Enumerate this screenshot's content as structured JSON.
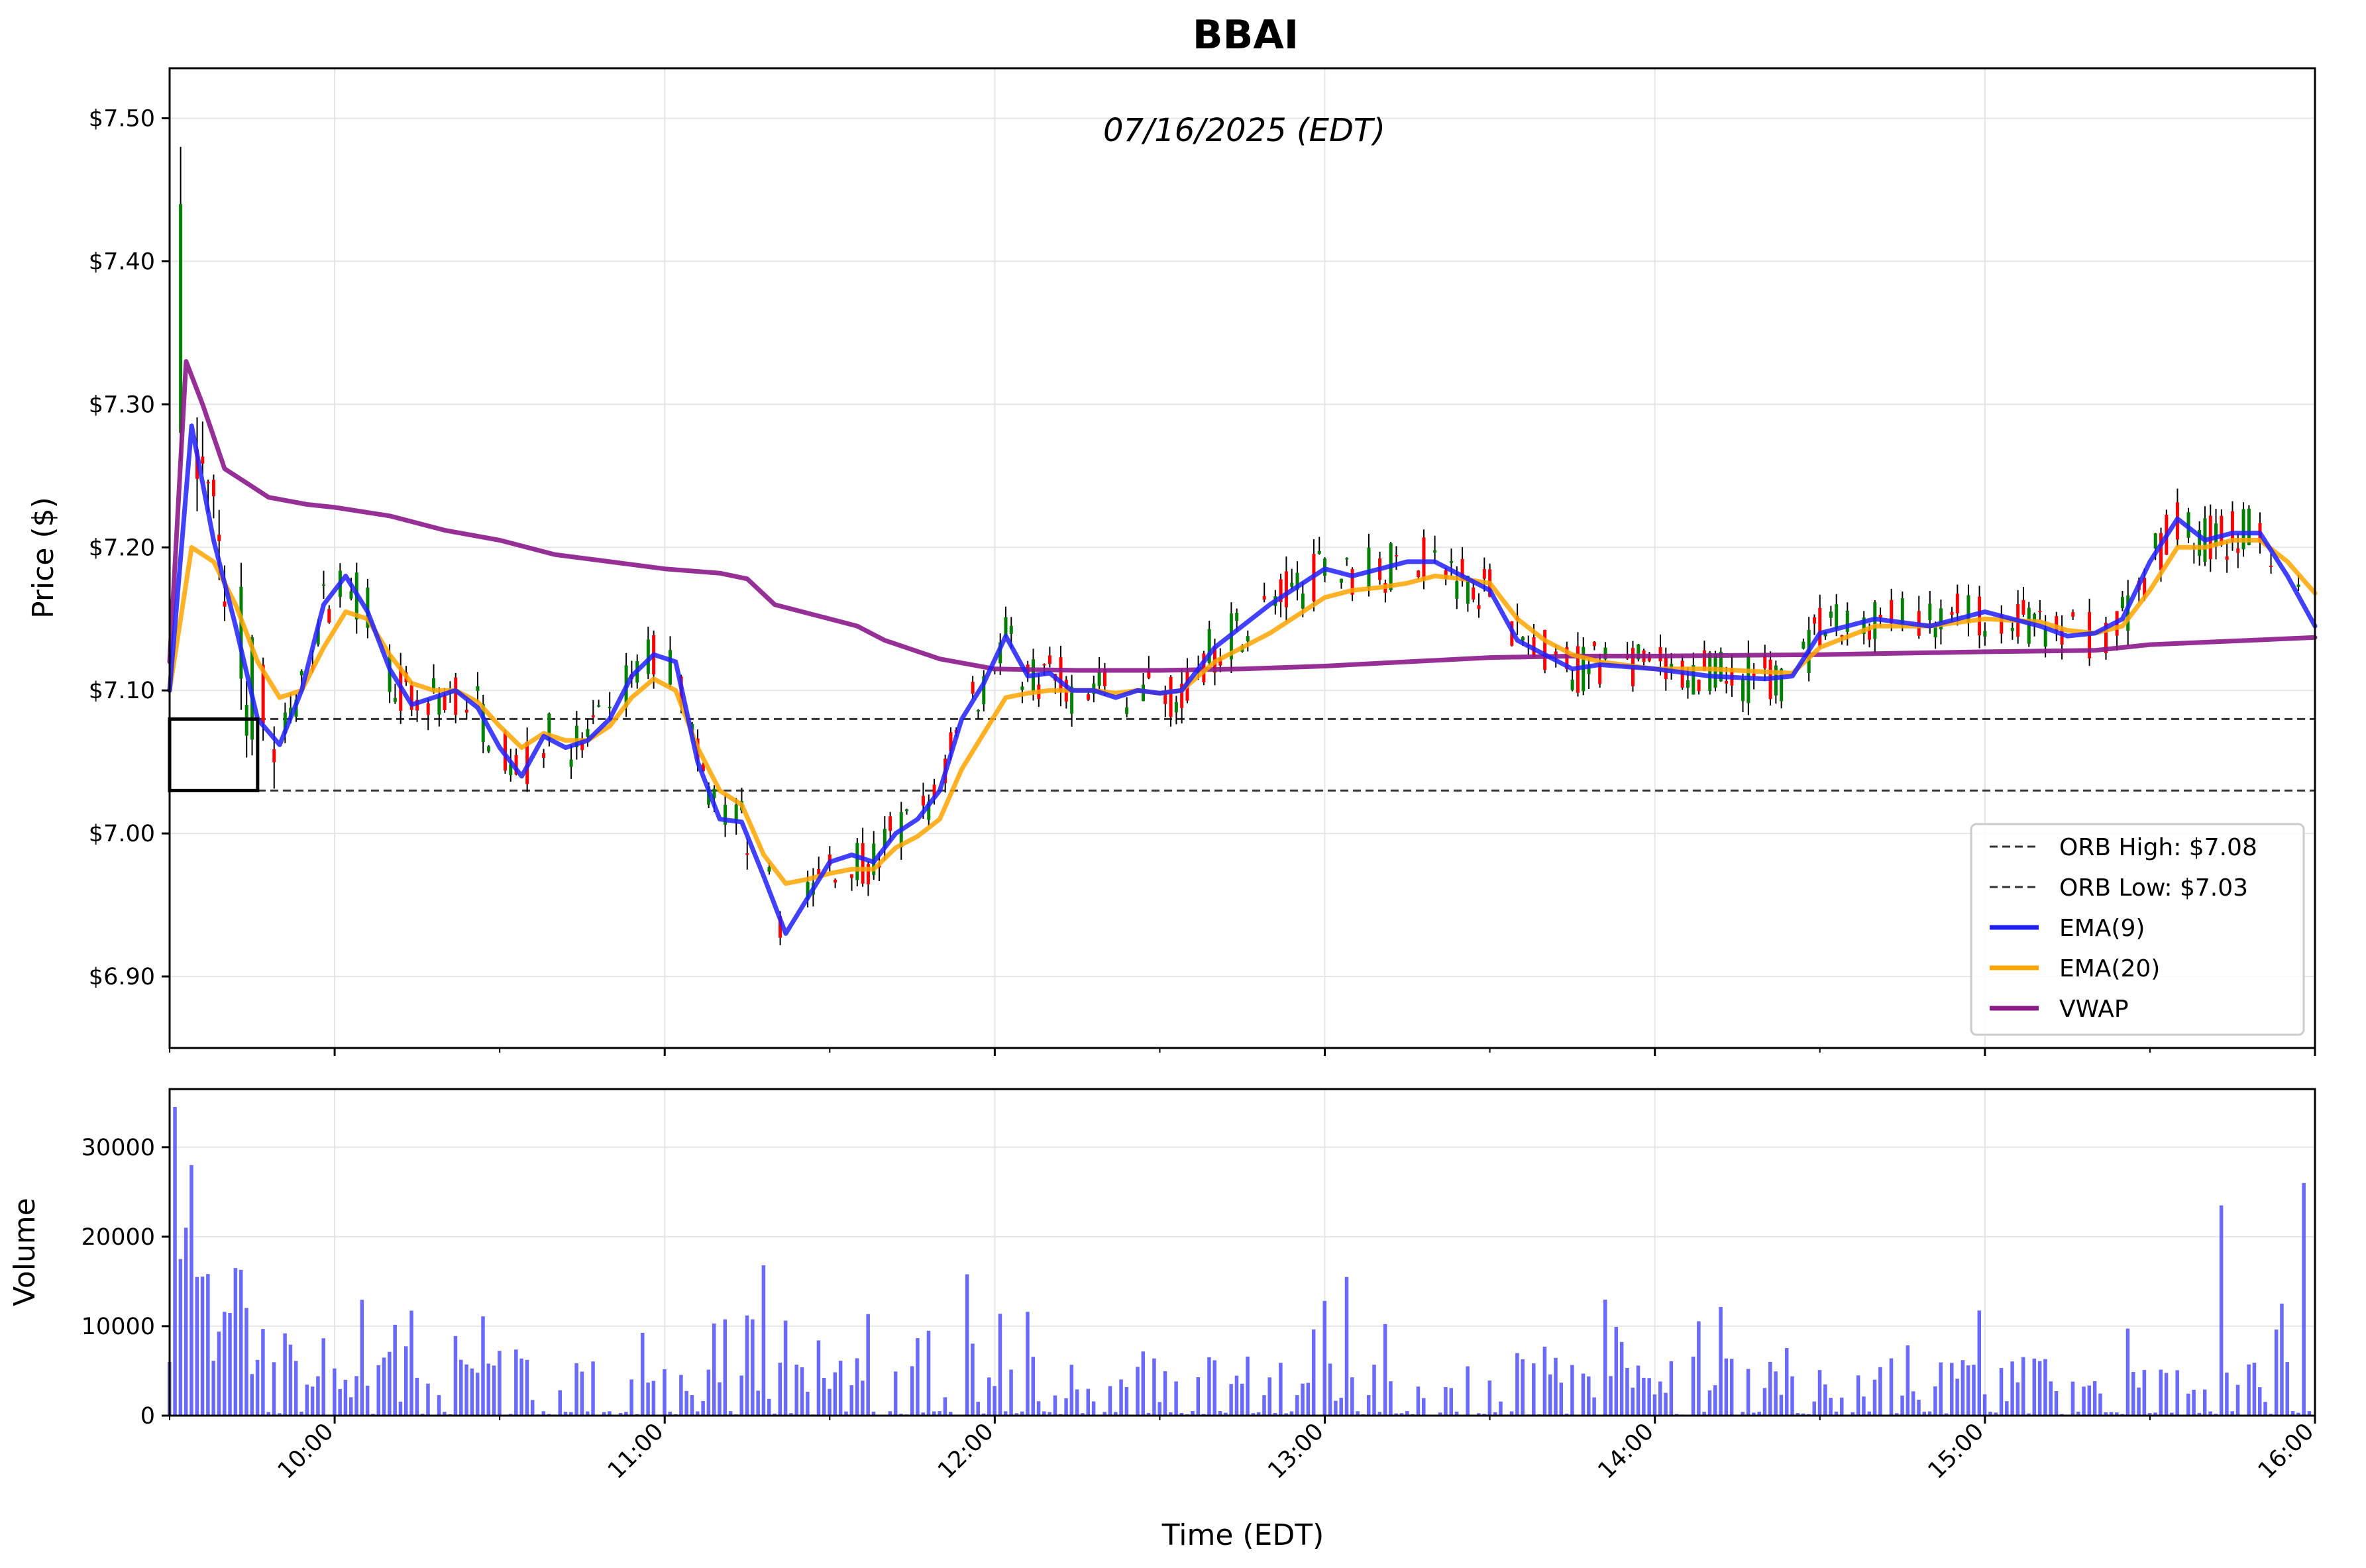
{
  "chart_data": [
    {
      "type": "candlestick",
      "title": "BBAI",
      "subtitle": "07/16/2025 (EDT)",
      "ylabel": "Price ($)",
      "xlabel": "",
      "x_range": [
        "09:30",
        "16:00"
      ],
      "ylim": [
        6.85,
        7.535
      ],
      "yticks": [
        6.9,
        7.0,
        7.1,
        7.2,
        7.3,
        7.4,
        7.5
      ],
      "ytick_labels": [
        "$6.90",
        "$7.00",
        "$7.10",
        "$7.20",
        "$7.30",
        "$7.40",
        "$7.50"
      ],
      "grid": true,
      "legend_position": "lower right",
      "candle_colors": {
        "up": "#008000",
        "down": "#ff0000"
      },
      "orb": {
        "high": 7.08,
        "low": 7.03,
        "start": "09:30",
        "end": "09:46"
      },
      "series": [
        {
          "name": "ORB High: $7.08",
          "style": "dashed",
          "color": "#333333",
          "x": [
            "09:30",
            "16:00"
          ],
          "values": [
            7.08,
            7.08
          ]
        },
        {
          "name": "ORB Low: $7.03",
          "style": "dashed",
          "color": "#333333",
          "x": [
            "09:30",
            "16:00"
          ],
          "values": [
            7.03,
            7.03
          ]
        },
        {
          "name": "EMA(9)",
          "color": "#2020ff",
          "x": [
            "09:30",
            "09:34",
            "09:38",
            "09:42",
            "09:46",
            "09:50",
            "09:54",
            "09:58",
            "10:02",
            "10:06",
            "10:10",
            "10:14",
            "10:18",
            "10:22",
            "10:26",
            "10:30",
            "10:34",
            "10:38",
            "10:42",
            "10:46",
            "10:50",
            "10:54",
            "10:58",
            "11:02",
            "11:06",
            "11:10",
            "11:14",
            "11:18",
            "11:22",
            "11:26",
            "11:30",
            "11:34",
            "11:38",
            "11:42",
            "11:46",
            "11:50",
            "11:54",
            "11:58",
            "12:02",
            "12:06",
            "12:10",
            "12:14",
            "12:18",
            "12:22",
            "12:26",
            "12:30",
            "12:34",
            "12:40",
            "12:50",
            "13:00",
            "13:05",
            "13:10",
            "13:15",
            "13:20",
            "13:25",
            "13:30",
            "13:35",
            "13:40",
            "13:45",
            "13:50",
            "14:00",
            "14:10",
            "14:20",
            "14:25",
            "14:30",
            "14:40",
            "14:50",
            "15:00",
            "15:10",
            "15:15",
            "15:20",
            "15:25",
            "15:30",
            "15:35",
            "15:40",
            "15:45",
            "15:50",
            "15:55",
            "16:00"
          ],
          "values": [
            7.1,
            7.285,
            7.205,
            7.145,
            7.08,
            7.062,
            7.1,
            7.16,
            7.18,
            7.155,
            7.115,
            7.09,
            7.095,
            7.1,
            7.088,
            7.06,
            7.04,
            7.068,
            7.06,
            7.065,
            7.08,
            7.11,
            7.125,
            7.12,
            7.05,
            7.01,
            7.008,
            6.97,
            6.93,
            6.955,
            6.98,
            6.985,
            6.98,
            7.0,
            7.01,
            7.03,
            7.08,
            7.105,
            7.138,
            7.11,
            7.112,
            7.1,
            7.1,
            7.095,
            7.1,
            7.098,
            7.1,
            7.13,
            7.16,
            7.185,
            7.18,
            7.185,
            7.19,
            7.19,
            7.18,
            7.17,
            7.135,
            7.125,
            7.115,
            7.118,
            7.115,
            7.11,
            7.108,
            7.11,
            7.14,
            7.15,
            7.145,
            7.155,
            7.145,
            7.138,
            7.14,
            7.15,
            7.19,
            7.22,
            7.205,
            7.21,
            7.21,
            7.18,
            7.145
          ]
        },
        {
          "name": "EMA(20)",
          "color": "#ffa500",
          "x": [
            "09:30",
            "09:34",
            "09:38",
            "09:42",
            "09:46",
            "09:50",
            "09:54",
            "09:58",
            "10:02",
            "10:06",
            "10:10",
            "10:14",
            "10:18",
            "10:22",
            "10:26",
            "10:30",
            "10:34",
            "10:38",
            "10:42",
            "10:46",
            "10:50",
            "10:54",
            "10:58",
            "11:02",
            "11:06",
            "11:10",
            "11:14",
            "11:18",
            "11:22",
            "11:26",
            "11:30",
            "11:34",
            "11:38",
            "11:42",
            "11:46",
            "11:50",
            "11:54",
            "11:58",
            "12:02",
            "12:06",
            "12:10",
            "12:14",
            "12:18",
            "12:22",
            "12:26",
            "12:30",
            "12:34",
            "12:40",
            "12:50",
            "13:00",
            "13:05",
            "13:10",
            "13:15",
            "13:20",
            "13:25",
            "13:30",
            "13:35",
            "13:40",
            "13:45",
            "13:50",
            "14:00",
            "14:10",
            "14:20",
            "14:25",
            "14:30",
            "14:40",
            "14:50",
            "15:00",
            "15:10",
            "15:15",
            "15:20",
            "15:25",
            "15:30",
            "15:35",
            "15:40",
            "15:45",
            "15:50",
            "15:55",
            "16:00"
          ],
          "values": [
            7.1,
            7.2,
            7.19,
            7.16,
            7.12,
            7.095,
            7.1,
            7.13,
            7.155,
            7.15,
            7.125,
            7.105,
            7.1,
            7.1,
            7.092,
            7.075,
            7.06,
            7.07,
            7.065,
            7.065,
            7.075,
            7.095,
            7.108,
            7.1,
            7.06,
            7.03,
            7.02,
            6.985,
            6.965,
            6.968,
            6.972,
            6.975,
            6.975,
            6.99,
            6.998,
            7.01,
            7.045,
            7.07,
            7.095,
            7.098,
            7.1,
            7.1,
            7.1,
            7.098,
            7.1,
            7.098,
            7.1,
            7.12,
            7.14,
            7.165,
            7.17,
            7.172,
            7.175,
            7.18,
            7.178,
            7.175,
            7.15,
            7.135,
            7.125,
            7.12,
            7.115,
            7.115,
            7.113,
            7.112,
            7.13,
            7.145,
            7.145,
            7.15,
            7.148,
            7.142,
            7.14,
            7.145,
            7.17,
            7.2,
            7.2,
            7.205,
            7.205,
            7.19,
            7.168
          ]
        },
        {
          "name": "VWAP",
          "color": "#8b1a8b",
          "x": [
            "09:30",
            "09:33",
            "09:36",
            "09:40",
            "09:44",
            "09:48",
            "09:55",
            "10:00",
            "10:10",
            "10:20",
            "10:30",
            "10:40",
            "10:50",
            "11:00",
            "11:10",
            "11:15",
            "11:20",
            "11:25",
            "11:35",
            "11:40",
            "11:50",
            "12:00",
            "12:15",
            "12:30",
            "12:45",
            "13:00",
            "13:15",
            "13:30",
            "13:45",
            "14:00",
            "14:30",
            "15:00",
            "15:20",
            "15:30",
            "16:00"
          ],
          "values": [
            7.12,
            7.33,
            7.3,
            7.255,
            7.245,
            7.235,
            7.23,
            7.228,
            7.222,
            7.212,
            7.205,
            7.195,
            7.19,
            7.185,
            7.182,
            7.178,
            7.16,
            7.155,
            7.145,
            7.135,
            7.122,
            7.115,
            7.114,
            7.114,
            7.115,
            7.117,
            7.12,
            7.123,
            7.124,
            7.124,
            7.125,
            7.127,
            7.128,
            7.132,
            7.137
          ]
        }
      ]
    },
    {
      "type": "bar",
      "ylabel": "Volume",
      "xlabel": "Time (EDT)",
      "x_range": [
        "09:30",
        "16:00"
      ],
      "ylim": [
        0,
        36500
      ],
      "yticks": [
        0,
        10000,
        20000,
        30000
      ],
      "xticks": [
        "10:00",
        "11:00",
        "12:00",
        "13:00",
        "14:00",
        "15:00",
        "16:00"
      ],
      "bar_color": "#5050ff",
      "grid": true
    }
  ],
  "legend_items": [
    {
      "label": "ORB High: $7.08",
      "color": "#333333",
      "style": "dashed"
    },
    {
      "label": "ORB Low: $7.03",
      "color": "#333333",
      "style": "dashed"
    },
    {
      "label": "EMA(9)",
      "color": "#2020ff",
      "style": "solid"
    },
    {
      "label": "EMA(20)",
      "color": "#ffa500",
      "style": "solid"
    },
    {
      "label": "VWAP",
      "color": "#8b1a8b",
      "style": "solid"
    }
  ]
}
